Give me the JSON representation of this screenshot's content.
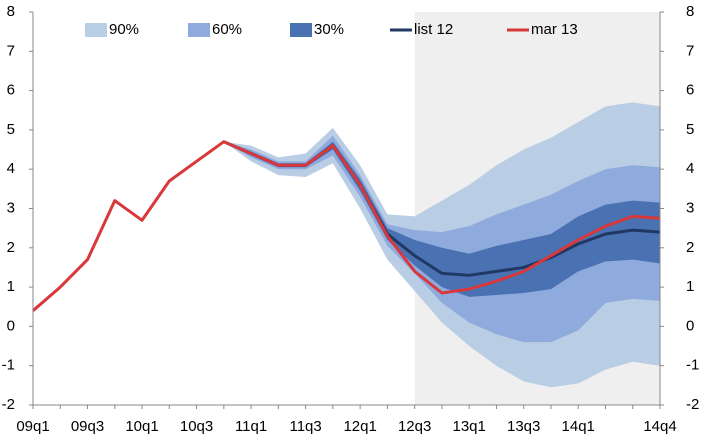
{
  "chart_data": {
    "type": "fan",
    "categories": [
      "09q1",
      null,
      "09q3",
      null,
      "10q1",
      null,
      "10q3",
      null,
      "11q1",
      null,
      "11q3",
      null,
      "12q1",
      null,
      "12q3",
      null,
      "13q1",
      null,
      "13q3",
      null,
      "14q1",
      null,
      null,
      "14q4"
    ],
    "shaded_from": "12q3",
    "series": [
      {
        "name": "90%",
        "color": "#b9cde5",
        "lower": [
          null,
          null,
          null,
          null,
          null,
          null,
          null,
          4.7,
          4.2,
          3.85,
          3.8,
          4.15,
          3.0,
          1.7,
          0.9,
          0.1,
          -0.5,
          -1.0,
          -1.4,
          -1.55,
          -1.45,
          -1.1,
          -0.9,
          -1.0
        ],
        "upper": [
          null,
          null,
          null,
          null,
          null,
          null,
          null,
          4.7,
          4.6,
          4.3,
          4.4,
          5.05,
          4.1,
          2.85,
          2.8,
          3.2,
          3.6,
          4.1,
          4.5,
          4.8,
          5.2,
          5.6,
          5.7,
          5.6
        ]
      },
      {
        "name": "60%",
        "color": "#8faadc",
        "lower": [
          null,
          null,
          null,
          null,
          null,
          null,
          null,
          4.7,
          4.3,
          4.0,
          4.0,
          4.35,
          3.3,
          2.05,
          1.35,
          0.6,
          0.1,
          -0.2,
          -0.4,
          -0.4,
          -0.1,
          0.6,
          0.7,
          0.65
        ],
        "upper": [
          null,
          null,
          null,
          null,
          null,
          null,
          null,
          4.7,
          4.5,
          4.2,
          4.2,
          4.85,
          3.85,
          2.6,
          2.45,
          2.4,
          2.55,
          2.85,
          3.1,
          3.35,
          3.7,
          4.0,
          4.1,
          4.05
        ]
      },
      {
        "name": "30%",
        "color": "#4a72b2",
        "lower": [
          null,
          null,
          null,
          null,
          null,
          null,
          null,
          4.7,
          4.35,
          4.05,
          4.05,
          4.5,
          3.45,
          2.2,
          1.55,
          1.0,
          0.75,
          0.8,
          0.85,
          0.95,
          1.4,
          1.65,
          1.7,
          1.6
        ],
        "upper": [
          null,
          null,
          null,
          null,
          null,
          null,
          null,
          4.7,
          4.45,
          4.15,
          4.15,
          4.7,
          3.75,
          2.5,
          2.2,
          2.0,
          1.85,
          2.05,
          2.2,
          2.35,
          2.8,
          3.1,
          3.2,
          3.15
        ]
      },
      {
        "name": "list 12",
        "color": "#1f3864",
        "values": [
          null,
          null,
          null,
          null,
          null,
          null,
          null,
          4.7,
          4.4,
          4.1,
          4.1,
          4.6,
          3.6,
          2.35,
          1.8,
          1.35,
          1.3,
          1.4,
          1.5,
          1.75,
          2.1,
          2.35,
          2.45,
          2.4
        ]
      },
      {
        "name": "mar 13",
        "color": "#d9383a",
        "values": [
          0.4,
          1.0,
          1.7,
          3.2,
          2.7,
          3.7,
          4.2,
          4.7,
          4.4,
          4.1,
          4.1,
          4.6,
          3.6,
          2.3,
          1.4,
          0.85,
          0.95,
          1.15,
          1.4,
          1.8,
          2.2,
          2.55,
          2.8,
          2.75
        ]
      }
    ],
    "ylim": [
      -2,
      8
    ],
    "yticks": [
      -2,
      -1,
      0,
      1,
      2,
      3,
      4,
      5,
      6,
      7,
      8
    ],
    "y2lim": [
      -2,
      8
    ],
    "y2ticks": [
      -2,
      -1,
      0,
      1,
      2,
      3,
      4,
      5,
      6,
      7,
      8
    ],
    "legend": "top"
  }
}
